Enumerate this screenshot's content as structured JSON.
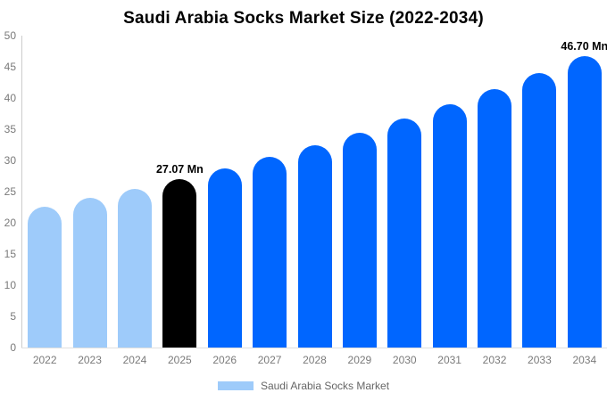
{
  "chart_data": {
    "type": "bar",
    "title": "Saudi Arabia Socks Market Size (2022-2034)",
    "unit": "Mn",
    "categories": [
      "2022",
      "2023",
      "2024",
      "2025",
      "2026",
      "2027",
      "2028",
      "2029",
      "2030",
      "2031",
      "2032",
      "2033",
      "2034"
    ],
    "values": [
      22.57,
      23.98,
      25.48,
      27.07,
      28.76,
      30.56,
      32.47,
      34.5,
      36.65,
      38.94,
      41.38,
      43.96,
      46.7
    ],
    "bar_colors": [
      "#9ECBFA",
      "#9ECBFA",
      "#9ECBFA",
      "#000000",
      "#0066FF",
      "#0066FF",
      "#0066FF",
      "#0066FF",
      "#0066FF",
      "#0066FF",
      "#0066FF",
      "#0066FF",
      "#0066FF"
    ],
    "annotations": [
      {
        "category": "2025",
        "text": "27.07 Mn"
      },
      {
        "category": "2034",
        "text": "46.70 Mn"
      }
    ],
    "xlabel": "",
    "ylabel": "",
    "ylim": [
      0,
      50
    ],
    "yticks": [
      0,
      5,
      10,
      15,
      20,
      25,
      30,
      35,
      40,
      45,
      50
    ],
    "grid": "off",
    "legend_position": "bottom"
  },
  "legend": {
    "label": "Saudi Arabia Socks Market",
    "swatch_color": "#9ECBFA"
  },
  "colors": {
    "historical_bar": "#9ECBFA",
    "highlight_bar": "#000000",
    "forecast_bar": "#0066FF",
    "axis_line": "#CCCCCC",
    "baseline": "#E0E0E0",
    "tick_text": "#7A7A7A",
    "legend_text": "#666666",
    "title_text": "#000000",
    "background": "#FFFFFF"
  }
}
